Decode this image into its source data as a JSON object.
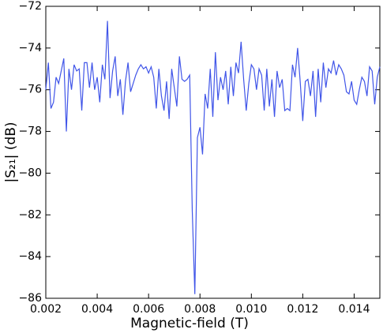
{
  "chart_data": {
    "type": "line",
    "xlabel": "Magnetic-field (T)",
    "ylabel": "|S₂₁| (dB)",
    "xlim": [
      0.002,
      0.015
    ],
    "ylim": [
      -86,
      -72
    ],
    "xticks": [
      0.002,
      0.004,
      0.006,
      0.008,
      {
        "value": 0.01,
        "label": "0.010"
      },
      0.012,
      0.014
    ],
    "yticks": [
      {
        "value": -86,
        "label": "−86"
      },
      {
        "value": -84,
        "label": "−84"
      },
      {
        "value": -82,
        "label": "−82"
      },
      {
        "value": -80,
        "label": "−80"
      },
      {
        "value": -78,
        "label": "−78"
      },
      {
        "value": -76,
        "label": "−76"
      },
      {
        "value": -74,
        "label": "−74"
      },
      {
        "value": -72,
        "label": "−72"
      }
    ],
    "grid": false,
    "series": [
      {
        "color": "#4055e8",
        "x": [
          0.002,
          0.0021,
          0.0022,
          0.0023,
          0.0024,
          0.0025,
          0.0026,
          0.0027,
          0.0028,
          0.0029,
          0.003,
          0.0031,
          0.0032,
          0.0033,
          0.0034,
          0.0035,
          0.0036,
          0.0037,
          0.0038,
          0.0039,
          0.004,
          0.0041,
          0.0042,
          0.0043,
          0.0044,
          0.0045,
          0.0046,
          0.0047,
          0.0048,
          0.0049,
          0.005,
          0.0051,
          0.0052,
          0.0053,
          0.0054,
          0.0055,
          0.0056,
          0.0057,
          0.0058,
          0.0059,
          0.006,
          0.0061,
          0.0062,
          0.0063,
          0.0064,
          0.0065,
          0.0066,
          0.0067,
          0.0068,
          0.0069,
          0.007,
          0.0071,
          0.0072,
          0.0073,
          0.0074,
          0.0075,
          0.0076,
          0.0077,
          0.0078,
          0.0079,
          0.008,
          0.0081,
          0.0082,
          0.0083,
          0.0084,
          0.0085,
          0.0086,
          0.0087,
          0.0088,
          0.0089,
          0.009,
          0.0091,
          0.0092,
          0.0093,
          0.0094,
          0.0095,
          0.0096,
          0.0097,
          0.0098,
          0.0099,
          0.01,
          0.0101,
          0.0102,
          0.0103,
          0.0104,
          0.0105,
          0.0106,
          0.0107,
          0.0108,
          0.0109,
          0.011,
          0.0111,
          0.0112,
          0.0113,
          0.0114,
          0.0115,
          0.0116,
          0.0117,
          0.0118,
          0.0119,
          0.012,
          0.0121,
          0.0122,
          0.0123,
          0.0124,
          0.0125,
          0.0126,
          0.0127,
          0.0128,
          0.0129,
          0.013,
          0.0131,
          0.0132,
          0.0133,
          0.0134,
          0.0135,
          0.0136,
          0.0137,
          0.0138,
          0.0139,
          0.014,
          0.0141,
          0.0142,
          0.0143,
          0.0144,
          0.0145,
          0.0146,
          0.0147,
          0.0148,
          0.0149,
          0.015
        ],
        "values": [
          -76.0,
          -74.7,
          -76.9,
          -76.6,
          -75.4,
          -75.7,
          -75.1,
          -74.5,
          -78.0,
          -75.0,
          -76.0,
          -74.8,
          -75.1,
          -75.0,
          -77.0,
          -74.7,
          -74.7,
          -75.9,
          -74.7,
          -76.0,
          -75.4,
          -76.6,
          -74.8,
          -75.5,
          -72.7,
          -76.4,
          -75.1,
          -74.4,
          -76.3,
          -75.5,
          -77.2,
          -75.6,
          -74.7,
          -76.1,
          -75.7,
          -75.3,
          -75.0,
          -74.8,
          -75.0,
          -74.9,
          -75.2,
          -74.9,
          -75.4,
          -76.9,
          -75.0,
          -76.3,
          -77.0,
          -75.6,
          -77.4,
          -75.0,
          -75.9,
          -76.8,
          -74.4,
          -75.5,
          -75.6,
          -75.5,
          -75.3,
          -81.8,
          -85.8,
          -78.3,
          -77.8,
          -79.1,
          -76.2,
          -76.9,
          -75.0,
          -77.3,
          -74.2,
          -76.5,
          -75.4,
          -76.0,
          -75.1,
          -76.7,
          -74.9,
          -76.3,
          -74.7,
          -75.2,
          -73.7,
          -75.5,
          -77.0,
          -75.7,
          -74.8,
          -75.0,
          -76.0,
          -75.0,
          -75.3,
          -77.0,
          -75.0,
          -76.8,
          -75.5,
          -77.3,
          -75.1,
          -75.9,
          -75.5,
          -77.0,
          -76.9,
          -77.0,
          -74.8,
          -75.4,
          -74.0,
          -75.6,
          -77.5,
          -75.6,
          -75.5,
          -76.3,
          -75.1,
          -77.3,
          -75.0,
          -76.6,
          -74.7,
          -75.9,
          -75.0,
          -75.2,
          -74.6,
          -75.3,
          -74.8,
          -75.0,
          -75.3,
          -76.1,
          -76.2,
          -75.6,
          -76.5,
          -76.7,
          -76.0,
          -75.4,
          -75.6,
          -76.3,
          -74.9,
          -75.1,
          -76.7,
          -75.4,
          -74.9
        ]
      }
    ]
  }
}
